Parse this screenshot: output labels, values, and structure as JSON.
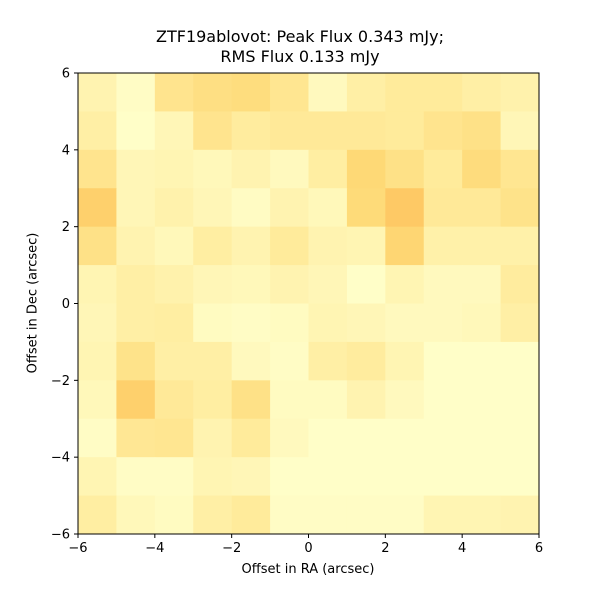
{
  "chart_data": {
    "type": "heatmap",
    "title_line1": "ZTF19ablovot: Peak Flux 0.343 mJy;",
    "title_line2": "RMS Flux 0.133 mJy",
    "xlabel": "Offset in RA (arcsec)",
    "ylabel": "Offset in Dec (arcsec)",
    "xlim": [
      -6,
      6
    ],
    "ylim": [
      -6,
      6
    ],
    "xticks": [
      -6,
      -4,
      -2,
      0,
      2,
      4,
      6
    ],
    "yticks": [
      -6,
      -4,
      -2,
      0,
      2,
      4,
      6
    ],
    "xtick_labels": [
      "−6",
      "−4",
      "−2",
      "0",
      "2",
      "4",
      "6"
    ],
    "ytick_labels": [
      "−6",
      "−4",
      "−2",
      "0",
      "2",
      "4",
      "6"
    ],
    "colormap": [
      "#ffffcc",
      "#ffeda0",
      "#fed976",
      "#feb24c",
      "#fd8d3c"
    ],
    "grid": false,
    "cell_size_arcsec": 1,
    "rows_top_to_bottom": [
      [
        0.16,
        0.04,
        0.36,
        0.42,
        0.45,
        0.34,
        0.08,
        0.22,
        0.28,
        0.28,
        0.22,
        0.18
      ],
      [
        0.22,
        0.02,
        0.12,
        0.36,
        0.26,
        0.3,
        0.3,
        0.3,
        0.28,
        0.36,
        0.4,
        0.12
      ],
      [
        0.36,
        0.12,
        0.14,
        0.1,
        0.16,
        0.08,
        0.24,
        0.5,
        0.4,
        0.28,
        0.46,
        0.34
      ],
      [
        0.56,
        0.12,
        0.18,
        0.12,
        0.05,
        0.16,
        0.1,
        0.48,
        0.6,
        0.3,
        0.3,
        0.38
      ],
      [
        0.4,
        0.16,
        0.1,
        0.24,
        0.16,
        0.28,
        0.16,
        0.14,
        0.52,
        0.2,
        0.2,
        0.2
      ],
      [
        0.14,
        0.22,
        0.18,
        0.12,
        0.1,
        0.16,
        0.12,
        0.02,
        0.14,
        0.08,
        0.08,
        0.26
      ],
      [
        0.12,
        0.22,
        0.24,
        0.06,
        0.04,
        0.06,
        0.14,
        0.12,
        0.08,
        0.08,
        0.1,
        0.22
      ],
      [
        0.14,
        0.38,
        0.22,
        0.22,
        0.08,
        0.04,
        0.22,
        0.26,
        0.14,
        0.02,
        0.02,
        0.02
      ],
      [
        0.1,
        0.56,
        0.3,
        0.24,
        0.4,
        0.06,
        0.06,
        0.16,
        0.08,
        0.02,
        0.02,
        0.02
      ],
      [
        0.04,
        0.32,
        0.34,
        0.16,
        0.28,
        0.08,
        0.02,
        0.02,
        0.02,
        0.02,
        0.02,
        0.02
      ],
      [
        0.14,
        0.04,
        0.04,
        0.14,
        0.12,
        0.02,
        0.02,
        0.02,
        0.02,
        0.02,
        0.02,
        0.02
      ],
      [
        0.24,
        0.1,
        0.06,
        0.22,
        0.28,
        0.04,
        0.04,
        0.04,
        0.04,
        0.14,
        0.14,
        0.16
      ]
    ]
  }
}
